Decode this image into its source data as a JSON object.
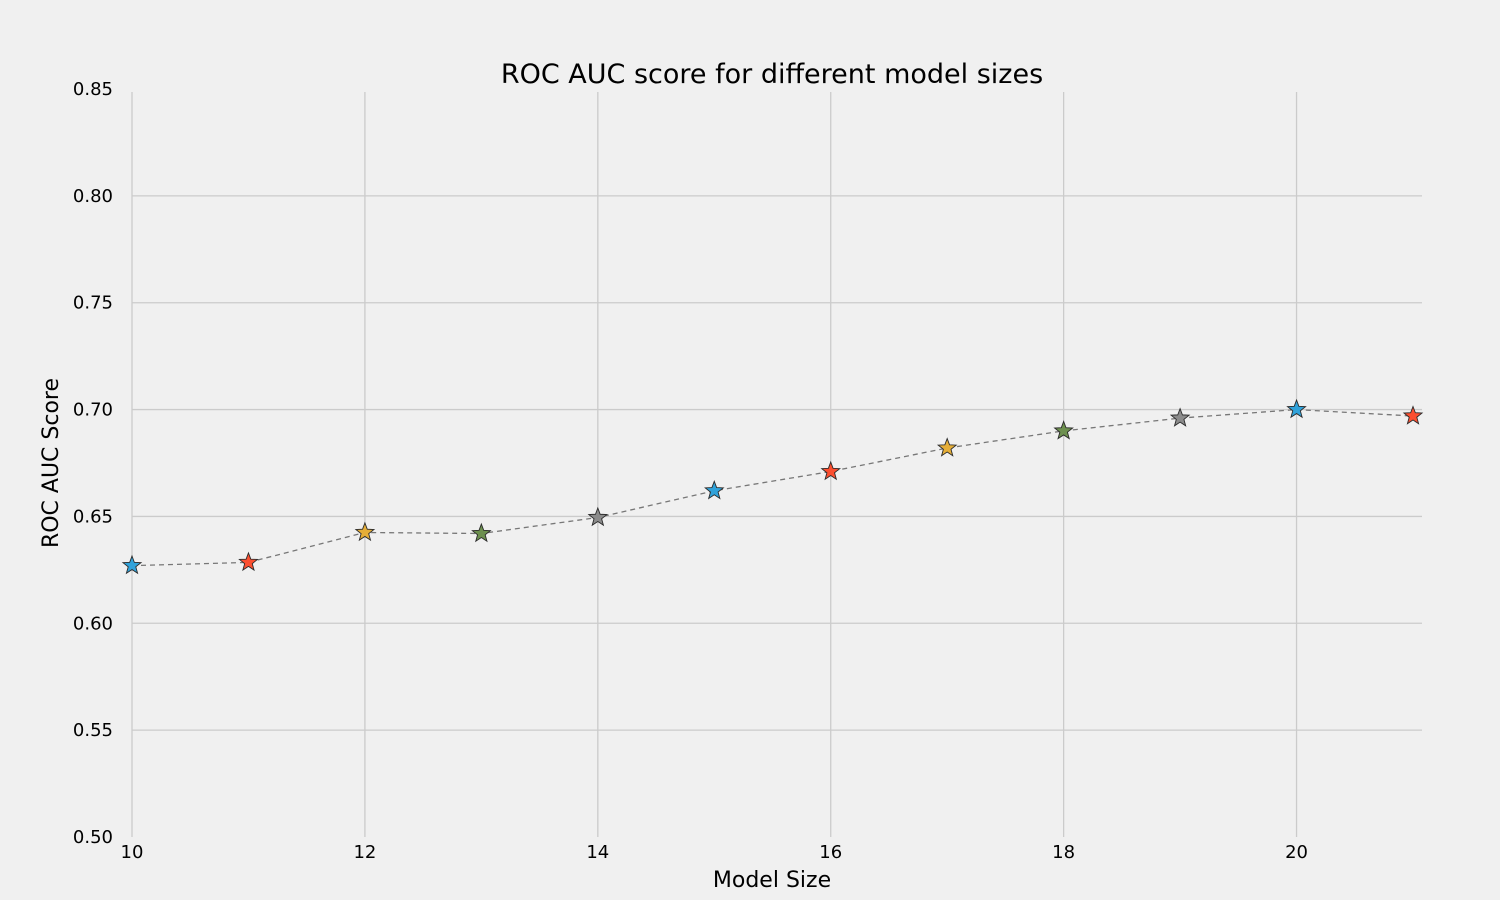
{
  "chart_data": {
    "type": "line",
    "title": "ROC AUC score for different model sizes",
    "xlabel": "Model Size",
    "ylabel": "ROC AUC Score",
    "x": [
      10,
      11,
      12,
      13,
      14,
      15,
      16,
      17,
      18,
      19,
      20,
      21
    ],
    "y": [
      0.627,
      0.6285,
      0.6425,
      0.642,
      0.6495,
      0.662,
      0.671,
      0.682,
      0.69,
      0.696,
      0.7,
      0.697
    ],
    "xlim": [
      10,
      21
    ],
    "ylim": [
      0.5,
      0.85
    ],
    "xticks": [
      "10",
      "12",
      "14",
      "16",
      "18",
      "20"
    ],
    "yticks": [
      "0.50",
      "0.55",
      "0.60",
      "0.65",
      "0.70",
      "0.75",
      "0.80",
      "0.85"
    ],
    "grid": true,
    "line_style": "dashed",
    "line_color": "#777777",
    "marker": "star",
    "marker_colors": [
      "#30a2da",
      "#fc4f30",
      "#e5ae38",
      "#6d904f",
      "#8b8b8b"
    ],
    "background_color": "#f0f0f0",
    "grid_color": "#cbcbcb"
  }
}
